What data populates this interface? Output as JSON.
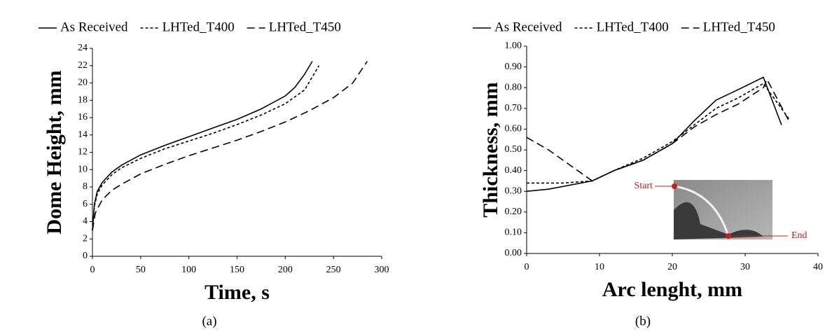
{
  "chart_data": [
    {
      "type": "line",
      "caption": "(a)",
      "xlabel": "Time, s",
      "ylabel": "Dome Height, mm",
      "xlim": [
        0,
        300
      ],
      "xticks": [
        0,
        50,
        100,
        150,
        200,
        250,
        300
      ],
      "ylim": [
        0,
        24
      ],
      "yticks": [
        0,
        2,
        4,
        6,
        8,
        10,
        12,
        14,
        16,
        18,
        20,
        22,
        24
      ],
      "grid": false,
      "series": [
        {
          "name": "As Received",
          "color": "#000000",
          "dash": "solid",
          "x": [
            0,
            2,
            5,
            10,
            20,
            30,
            50,
            75,
            100,
            125,
            150,
            175,
            200,
            210,
            220,
            228
          ],
          "values": [
            3,
            6,
            7.5,
            8.5,
            9.7,
            10.5,
            11.7,
            12.8,
            13.8,
            14.8,
            15.8,
            17,
            18.5,
            19.5,
            21,
            22.5
          ]
        },
        {
          "name": "LHTed_T400",
          "color": "#000000",
          "dash": "short",
          "x": [
            0,
            2,
            5,
            10,
            20,
            30,
            50,
            75,
            100,
            125,
            150,
            175,
            200,
            220,
            235
          ],
          "values": [
            3,
            5.8,
            7.2,
            8.2,
            9.4,
            10.2,
            11.3,
            12.4,
            13.3,
            14.2,
            15.2,
            16.3,
            17.6,
            19.2,
            22
          ]
        },
        {
          "name": "LHTed_T450",
          "color": "#000000",
          "dash": "long",
          "x": [
            0,
            3,
            10,
            20,
            30,
            50,
            75,
            100,
            125,
            150,
            175,
            200,
            225,
            250,
            270,
            285
          ],
          "values": [
            3,
            5,
            6.5,
            7.6,
            8.3,
            9.5,
            10.6,
            11.6,
            12.5,
            13.4,
            14.4,
            15.5,
            16.8,
            18.3,
            20,
            22.5
          ]
        }
      ]
    },
    {
      "type": "line",
      "caption": "(b)",
      "xlabel": "Arc lenght, mm",
      "ylabel": "Thickness, mm",
      "xlim": [
        0,
        40
      ],
      "xticks": [
        0,
        10,
        20,
        30,
        40
      ],
      "ylim": [
        0,
        1
      ],
      "yticks": [
        {
          "value": 0,
          "label": "0.00"
        },
        {
          "value": 0.1,
          "label": "0.10"
        },
        {
          "value": 0.2,
          "label": "0.20"
        },
        {
          "value": 0.3,
          "label": "0.30"
        },
        {
          "value": 0.4,
          "label": "0.40"
        },
        {
          "value": 0.5,
          "label": "0.50"
        },
        {
          "value": 0.6,
          "label": "0.60"
        },
        {
          "value": 0.7,
          "label": "0.70"
        },
        {
          "value": 0.8,
          "label": "0.80"
        },
        {
          "value": 0.9,
          "label": "0.90"
        },
        {
          "value": 1,
          "label": "1.00"
        }
      ],
      "grid": false,
      "annotations": [
        "Start",
        "End"
      ],
      "series": [
        {
          "name": "As Received",
          "color": "#000000",
          "dash": "solid",
          "x": [
            0,
            3,
            9,
            12,
            16,
            20,
            23,
            26,
            29,
            32.5,
            35
          ],
          "values": [
            0.3,
            0.31,
            0.35,
            0.4,
            0.45,
            0.53,
            0.64,
            0.74,
            0.79,
            0.85,
            0.62
          ]
        },
        {
          "name": "LHTed_T400",
          "color": "#000000",
          "dash": "short",
          "x": [
            0,
            5,
            9,
            12,
            16,
            20,
            23,
            26,
            29,
            32.5,
            36
          ],
          "values": [
            0.34,
            0.34,
            0.35,
            0.4,
            0.46,
            0.54,
            0.62,
            0.7,
            0.75,
            0.82,
            0.65
          ]
        },
        {
          "name": "LHTed_T450",
          "color": "#000000",
          "dash": "long",
          "x": [
            0,
            3,
            9,
            12,
            16,
            20,
            23,
            26,
            29,
            32.5,
            33,
            36
          ],
          "values": [
            0.56,
            0.5,
            0.35,
            0.4,
            0.45,
            0.53,
            0.61,
            0.67,
            0.72,
            0.8,
            0.84,
            0.64
          ]
        }
      ]
    }
  ]
}
